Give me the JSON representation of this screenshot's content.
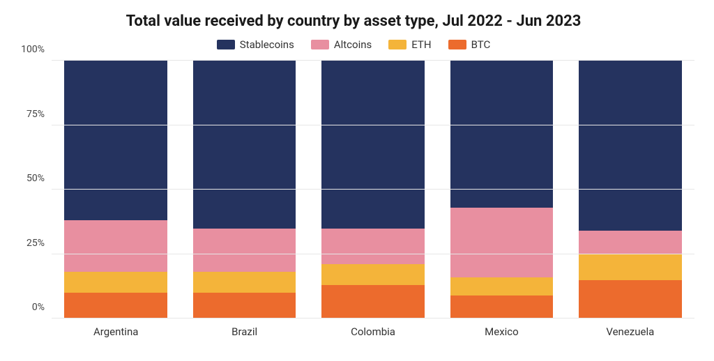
{
  "chart": {
    "type": "stacked-bar-percent",
    "title": "Total value received by country by asset type, Jul 2022 - Jun 2023",
    "title_fontsize": 22,
    "title_color": "#1a1a1a",
    "background_color": "#ffffff",
    "grid_color": "#e6e6e6",
    "label_color": "#333333",
    "axis_label_fontsize": 14,
    "x_label_fontsize": 15,
    "bar_width_pct": 80,
    "ylim": [
      0,
      100
    ],
    "ytick_step": 25,
    "yticks": [
      "0%",
      "25%",
      "50%",
      "75%",
      "100%"
    ],
    "legend": {
      "position": "top-center",
      "fontsize": 15,
      "items": [
        {
          "key": "stablecoins",
          "label": "Stablecoins",
          "color": "#25335f"
        },
        {
          "key": "altcoins",
          "label": "Altcoins",
          "color": "#e88fa0"
        },
        {
          "key": "eth",
          "label": "ETH",
          "color": "#f4b43a"
        },
        {
          "key": "btc",
          "label": "BTC",
          "color": "#ec6b2d"
        }
      ]
    },
    "categories": [
      "Argentina",
      "Brazil",
      "Colombia",
      "Mexico",
      "Venezuela"
    ],
    "stack_order": [
      "btc",
      "eth",
      "altcoins",
      "stablecoins"
    ],
    "series": {
      "btc": [
        10,
        10,
        13,
        9,
        15
      ],
      "eth": [
        8,
        8,
        8,
        7,
        10
      ],
      "altcoins": [
        20,
        17,
        14,
        27,
        9
      ],
      "stablecoins": [
        62,
        65,
        65,
        57,
        66
      ]
    }
  }
}
